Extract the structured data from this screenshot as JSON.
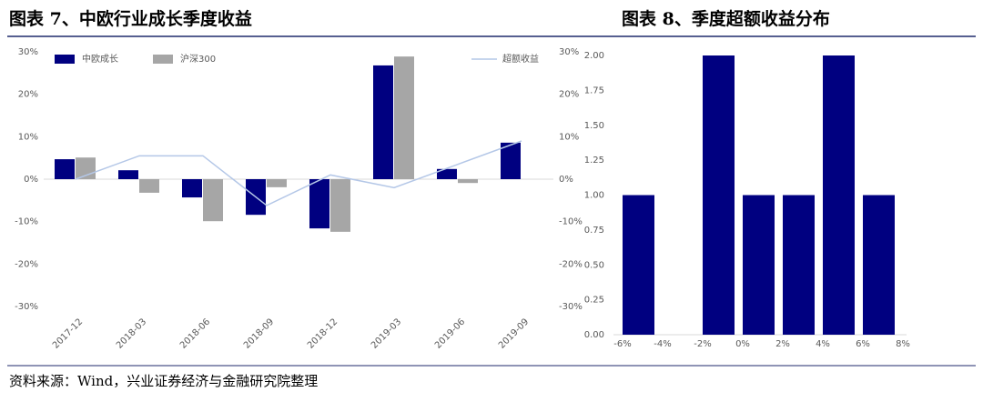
{
  "chart_data": [
    {
      "type": "bar",
      "title": "图表 7、中欧行业成长季度收益",
      "categories": [
        "2017-12",
        "2018-03",
        "2018-06",
        "2018-09",
        "2018-12",
        "2019-03",
        "2019-06",
        "2019-09"
      ],
      "series": [
        {
          "name": "中欧成长",
          "color": "#000080",
          "values": [
            4.7,
            2.1,
            -4.3,
            -8.4,
            -11.6,
            26.8,
            2.4,
            8.6
          ]
        },
        {
          "name": "沪深300",
          "color": "#a6a6a6",
          "values": [
            5.1,
            -3.2,
            -9.9,
            -1.9,
            -12.4,
            28.9,
            -0.9,
            null
          ]
        },
        {
          "name": "超额收益",
          "color": "#b4c7e7",
          "type": "line",
          "axis": "y2",
          "values": [
            0,
            5.5,
            5.5,
            -6.2,
            1,
            -2,
            3.5,
            9
          ]
        }
      ],
      "ylim": [
        -30,
        30
      ],
      "yticks": [
        {
          "value": 30,
          "label": "30%"
        },
        {
          "value": 20,
          "label": "20%"
        },
        {
          "value": 10,
          "label": "10%"
        },
        {
          "value": 0,
          "label": "0%"
        },
        {
          "value": -10,
          "label": "-10%"
        },
        {
          "value": -20,
          "label": "-20%"
        },
        {
          "value": -30,
          "label": "-30%"
        }
      ],
      "y2lim": [
        -30,
        30
      ],
      "y2ticks": [
        {
          "value": 30,
          "label": "30%"
        },
        {
          "value": 20,
          "label": "20%"
        },
        {
          "value": 10,
          "label": "10%"
        },
        {
          "value": 0,
          "label": "0%"
        },
        {
          "value": -10,
          "label": "-10%"
        },
        {
          "value": -20,
          "label": "-20%"
        },
        {
          "value": -30,
          "label": "-30%"
        }
      ]
    },
    {
      "type": "histogram",
      "title": "图表 8、季度超额收益分布",
      "bins": [
        -6,
        -4,
        -2,
        0,
        2,
        4,
        6,
        8
      ],
      "values": [
        1,
        0,
        2,
        1,
        1,
        2,
        1
      ],
      "color": "#000080",
      "xlim": [
        -6,
        8
      ],
      "xticks": [
        {
          "value": -6,
          "label": "-6%"
        },
        {
          "value": -4,
          "label": "-4%"
        },
        {
          "value": -2,
          "label": "-2%"
        },
        {
          "value": 0,
          "label": "0%"
        },
        {
          "value": 2,
          "label": "2%"
        },
        {
          "value": 4,
          "label": "4%"
        },
        {
          "value": 6,
          "label": "6%"
        },
        {
          "value": 8,
          "label": "8%"
        }
      ],
      "ylim": [
        0,
        2
      ],
      "yticks": [
        {
          "value": 0,
          "label": "0.00"
        },
        {
          "value": 0.25,
          "label": "0.25"
        },
        {
          "value": 0.5,
          "label": "0.50"
        },
        {
          "value": 0.75,
          "label": "0.75"
        },
        {
          "value": 1,
          "label": "1.00"
        },
        {
          "value": 1.25,
          "label": "1.25"
        },
        {
          "value": 1.5,
          "label": "1.50"
        },
        {
          "value": 1.75,
          "label": "1.75"
        },
        {
          "value": 2,
          "label": "2.00"
        }
      ]
    }
  ],
  "source": "资料来源：Wind，兴业证券经济与金融研究院整理"
}
